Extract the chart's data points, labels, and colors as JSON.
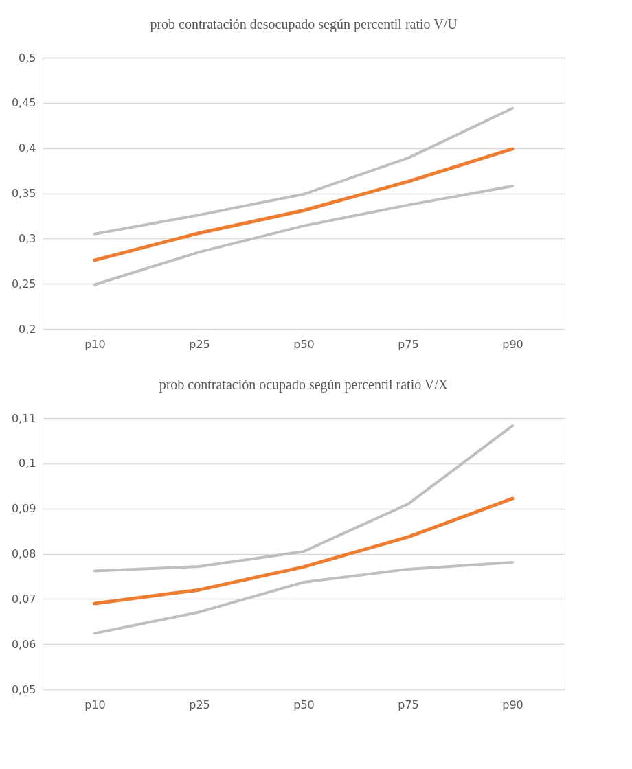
{
  "chart_data": [
    {
      "type": "line",
      "title": "prob contratación desocupado según percentil ratio V/U",
      "categories": [
        "p10",
        "p25",
        "p50",
        "p75",
        "p90"
      ],
      "series": [
        {
          "color": "#bfbfbf",
          "values": [
            0.305,
            0.326,
            0.349,
            0.389,
            0.444
          ]
        },
        {
          "color": "#bfbfbf",
          "values": [
            0.249,
            0.285,
            0.314,
            0.337,
            0.358
          ]
        },
        {
          "color": "#ed7d31",
          "values": [
            0.276,
            0.306,
            0.331,
            0.363,
            0.399
          ]
        }
      ],
      "ylim": [
        0.2,
        0.5
      ],
      "yticks": [
        {
          "value": 0.2,
          "label": "0,2"
        },
        {
          "value": 0.25,
          "label": "0,25"
        },
        {
          "value": 0.3,
          "label": "0,3"
        },
        {
          "value": 0.35,
          "label": "0,35"
        },
        {
          "value": 0.4,
          "label": "0,4"
        },
        {
          "value": 0.45,
          "label": "0,45"
        },
        {
          "value": 0.5,
          "label": "0,5"
        }
      ],
      "grid": "y",
      "marker": "none",
      "line_style": "solid"
    },
    {
      "type": "line",
      "title": "prob contratación ocupado según percentil ratio V/X",
      "categories": [
        "p10",
        "p25",
        "p50",
        "p75",
        "p90"
      ],
      "series": [
        {
          "color": "#bfbfbf",
          "values": [
            0.0762,
            0.0772,
            0.0805,
            0.091,
            0.1083
          ]
        },
        {
          "color": "#bfbfbf",
          "values": [
            0.0624,
            0.0671,
            0.0737,
            0.0766,
            0.0781
          ]
        },
        {
          "color": "#ed7d31",
          "values": [
            0.069,
            0.072,
            0.0771,
            0.0837,
            0.0922
          ]
        }
      ],
      "ylim": [
        0.05,
        0.11
      ],
      "yticks": [
        {
          "value": 0.05,
          "label": "0,05"
        },
        {
          "value": 0.06,
          "label": "0,06"
        },
        {
          "value": 0.07,
          "label": "0,07"
        },
        {
          "value": 0.08,
          "label": "0,08"
        },
        {
          "value": 0.09,
          "label": "0,09"
        },
        {
          "value": 0.1,
          "label": "0,1"
        },
        {
          "value": 0.11,
          "label": "0,11"
        }
      ],
      "grid": "y",
      "marker": "none",
      "line_style": "solid"
    }
  ]
}
